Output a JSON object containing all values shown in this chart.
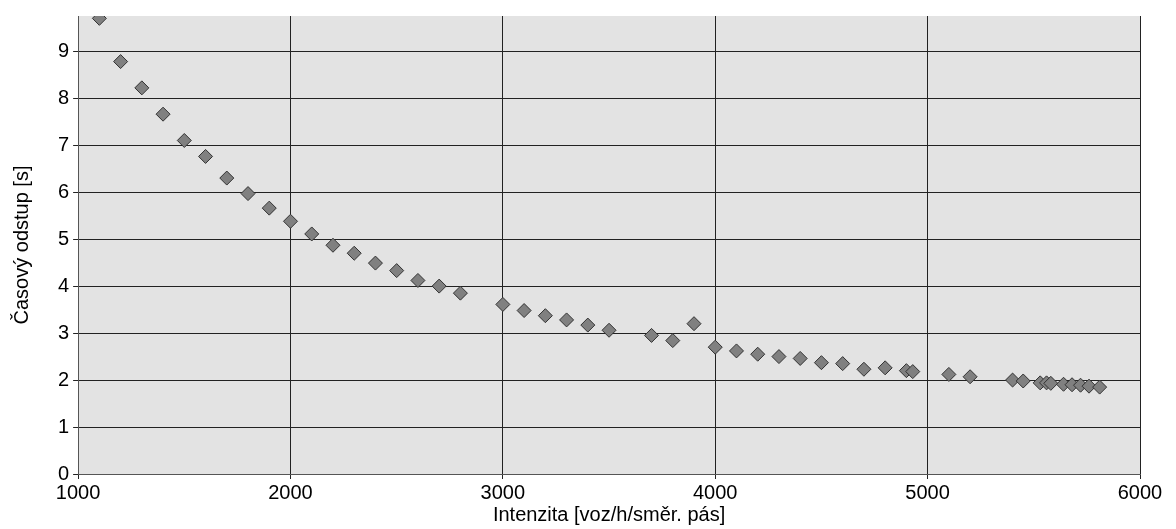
{
  "chart_data": {
    "type": "scatter",
    "xlabel": "Intenzita [voz/h/směr. pás]",
    "ylabel": "Časový odstup [s]",
    "xlim": [
      1000,
      6000
    ],
    "xticks": [
      1000,
      2000,
      3000,
      4000,
      5000,
      6000
    ],
    "ylim": [
      0,
      9.75
    ],
    "yticks": [
      0,
      1,
      2,
      3,
      4,
      5,
      6,
      7,
      8,
      9
    ],
    "grid": true,
    "legend": false,
    "marker": "diamond",
    "series": [
      {
        "color": "#808080",
        "x": [
          1100,
          1200,
          1300,
          1400,
          1500,
          1600,
          1700,
          1800,
          1900,
          2000,
          2100,
          2200,
          2300,
          2400,
          2500,
          2600,
          2700,
          2800,
          3000,
          3100,
          3200,
          3300,
          3400,
          3500,
          3700,
          3800,
          3900,
          4000,
          4100,
          4200,
          4300,
          4400,
          4500,
          4600,
          4700,
          4800,
          4900,
          4930,
          5100,
          5200,
          5400,
          5450,
          5530,
          5560,
          5580,
          5620,
          5640,
          5660,
          5680,
          5700,
          5720,
          5760,
          5790,
          5810
        ],
        "values": [
          9.7,
          8.78,
          8.22,
          7.66,
          7.1,
          6.76,
          6.3,
          5.97,
          5.66,
          5.38,
          5.11,
          4.87,
          4.7,
          4.49,
          4.33,
          4.12,
          4.0,
          3.85,
          3.61,
          3.48,
          3.37,
          3.28,
          3.17,
          3.06,
          2.95,
          2.84,
          3.2,
          2.7,
          2.62,
          2.55,
          2.5,
          2.46,
          2.37,
          2.35,
          2.23,
          2.26,
          2.2,
          2.18,
          2.12,
          2.07,
          2.0,
          1.98,
          1.94,
          1.94,
          1.93,
          null,
          1.91,
          null,
          1.9,
          null,
          1.89,
          1.87,
          null,
          1.85
        ]
      }
    ]
  }
}
